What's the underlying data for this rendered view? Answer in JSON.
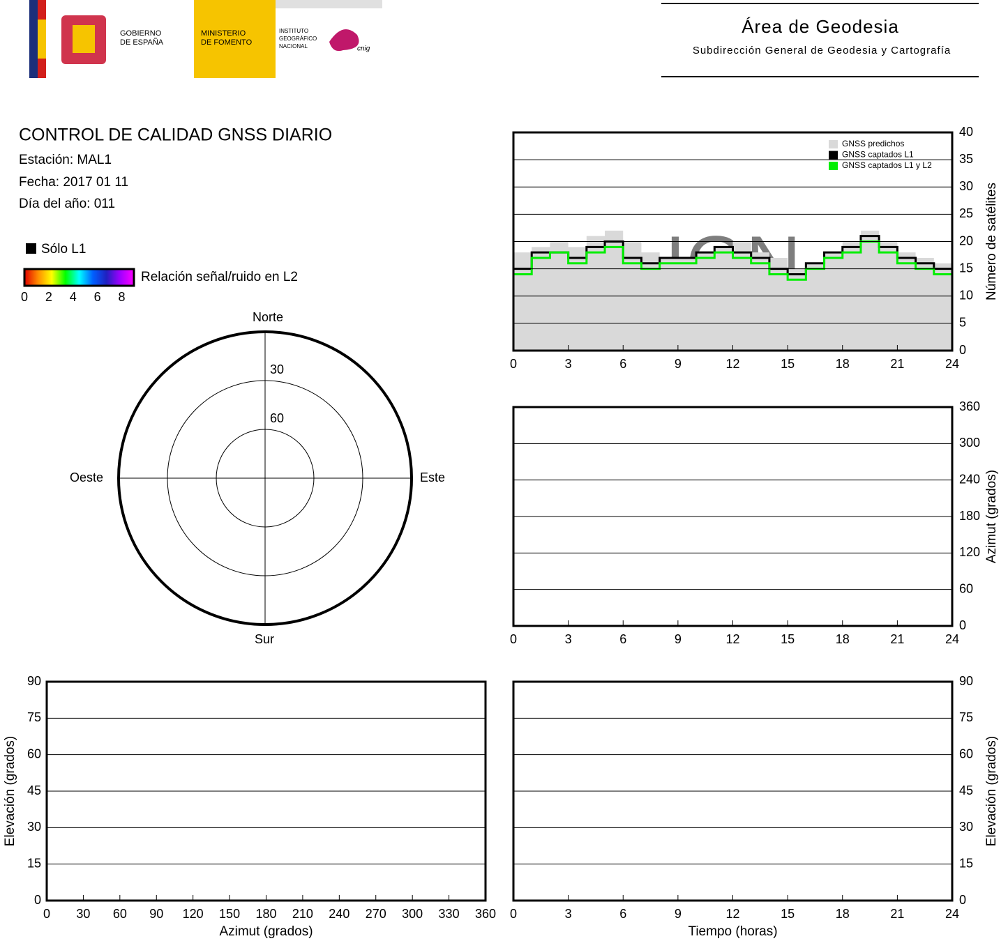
{
  "header": {
    "gov_line1": "GOBIERNO",
    "gov_line2": "DE ESPAÑA",
    "min_line1": "MINISTERIO",
    "min_line2": "DE FOMENTO",
    "ign_line1": "INSTITUTO",
    "ign_line2": "GEOGRÁFICO",
    "ign_line3": "NACIONAL",
    "cnig": "cnig",
    "area": "Área de Geodesia",
    "subarea": "Subdirección General de Geodesia y Cartografía"
  },
  "info": {
    "title": "CONTROL DE CALIDAD GNSS DIARIO",
    "station": "Estación: MAL1",
    "date": "Fecha: 2017 01 11",
    "doy": "Día del año: 011"
  },
  "legend": {
    "l1_only": "Sólo L1",
    "snr_label": "Relación señal/ruido en L2",
    "snr_ticks": [
      0,
      2,
      4,
      6,
      8
    ],
    "snr_range": [
      0,
      9
    ],
    "colorbar_colors": [
      "#e00000",
      "#ff8c00",
      "#ffff00",
      "#00ff00",
      "#00ffff",
      "#0060ff",
      "#2020c0",
      "#a000ff",
      "#ff00ff"
    ]
  },
  "polar": {
    "type": "polar",
    "north": "Norte",
    "south": "Sur",
    "west": "Oeste",
    "east": "Este",
    "rlim": [
      90,
      0
    ],
    "rticks": [
      30,
      60
    ]
  },
  "chart_data": [
    {
      "type": "line",
      "ylabel": "Número de satélites",
      "yaxis_position": "right",
      "watermark": "IGN",
      "legend": "upper right",
      "grid": true,
      "xlim": [
        0,
        24
      ],
      "xticks": [
        0,
        3,
        6,
        9,
        12,
        15,
        18,
        21,
        24
      ],
      "ylim": [
        0,
        40
      ],
      "yticks": [
        0,
        5,
        10,
        15,
        20,
        25,
        30,
        35,
        40
      ],
      "x": [
        0,
        1,
        2,
        3,
        4,
        5,
        6,
        7,
        8,
        9,
        10,
        11,
        12,
        13,
        14,
        15,
        16,
        17,
        18,
        19,
        20,
        21,
        22,
        23,
        24
      ],
      "series": [
        {
          "name": "GNSS predichos",
          "color": "#d9d9d9",
          "style": "area",
          "values": [
            18,
            19,
            20,
            19,
            21,
            22,
            20,
            18,
            17,
            17,
            18,
            19,
            20,
            18,
            17,
            15,
            16,
            18,
            20,
            22,
            20,
            18,
            17,
            16,
            17
          ]
        },
        {
          "name": "GNSS captados L1",
          "color": "#000000",
          "style": "step",
          "values": [
            15,
            18,
            18,
            17,
            19,
            20,
            17,
            16,
            17,
            17,
            18,
            19,
            18,
            17,
            15,
            14,
            16,
            18,
            19,
            21,
            19,
            17,
            16,
            15,
            16
          ]
        },
        {
          "name": "GNSS captados L1 y L2",
          "color": "#00ee00",
          "style": "step",
          "values": [
            14,
            17,
            18,
            16,
            18,
            19,
            16,
            15,
            16,
            16,
            17,
            18,
            17,
            16,
            14,
            13,
            15,
            17,
            18,
            20,
            18,
            16,
            15,
            14,
            15
          ]
        }
      ]
    },
    {
      "type": "axes",
      "ylabel": "Azimut (grados)",
      "yaxis_position": "right",
      "grid": true,
      "xlim": [
        0,
        24
      ],
      "xticks": [
        0,
        3,
        6,
        9,
        12,
        15,
        18,
        21,
        24
      ],
      "ylim": [
        0,
        360
      ],
      "yticks": [
        0,
        60,
        120,
        180,
        240,
        300,
        360
      ]
    },
    {
      "type": "axes",
      "xlabel": "Azimut (grados)",
      "ylabel": "Elevación (grados)",
      "yaxis_position": "left",
      "grid": true,
      "xlim": [
        0,
        360
      ],
      "xticks": [
        0,
        30,
        60,
        90,
        120,
        150,
        180,
        210,
        240,
        270,
        300,
        330,
        360
      ],
      "ylim": [
        0,
        90
      ],
      "yticks": [
        0,
        15,
        30,
        45,
        60,
        75,
        90
      ]
    },
    {
      "type": "axes",
      "xlabel": "Tiempo (horas)",
      "ylabel": "Elevación (grados)",
      "yaxis_position": "right",
      "grid": true,
      "xlim": [
        0,
        24
      ],
      "xticks": [
        0,
        3,
        6,
        9,
        12,
        15,
        18,
        21,
        24
      ],
      "ylim": [
        0,
        90
      ],
      "yticks": [
        0,
        15,
        30,
        45,
        60,
        75,
        90
      ]
    }
  ]
}
